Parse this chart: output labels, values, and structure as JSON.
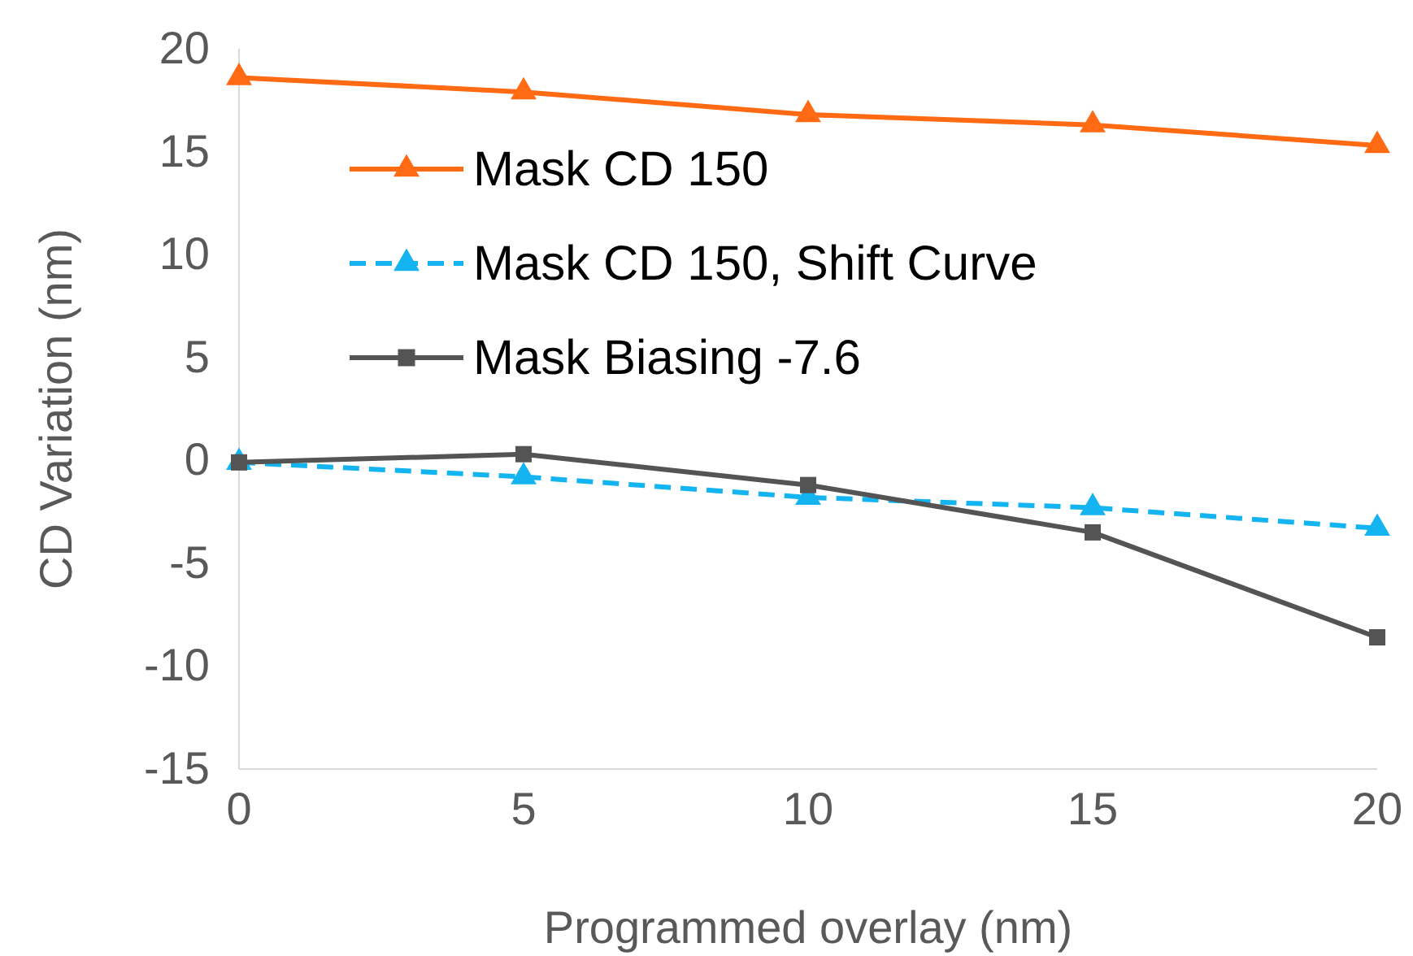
{
  "chart_data": {
    "type": "line",
    "xlabel": "Programmed overlay (nm)",
    "ylabel": "CD Variation (nm)",
    "x": [
      0,
      5,
      10,
      15,
      20
    ],
    "xlim": [
      0,
      20
    ],
    "xticks": [
      0,
      5,
      10,
      15,
      20
    ],
    "ylim": [
      -15,
      20
    ],
    "yticks": [
      -15,
      -10,
      -5,
      0,
      5,
      10,
      15,
      20
    ],
    "grid": false,
    "legend": "top left",
    "series": [
      {
        "name": "Mask CD 150",
        "color": "#ff6a13",
        "marker": "triangle",
        "line_style": "solid",
        "values": [
          18.6,
          17.9,
          16.8,
          16.3,
          15.3
        ]
      },
      {
        "name": "Mask CD 150, Shift Curve",
        "color": "#14b4f0",
        "marker": "triangle",
        "line_style": "dashed",
        "values": [
          -0.1,
          -0.8,
          -1.8,
          -2.3,
          -3.3
        ]
      },
      {
        "name": "Mask Biasing -7.6",
        "color": "#545454",
        "marker": "square",
        "line_style": "solid",
        "values": [
          -0.1,
          0.3,
          -1.2,
          -3.5,
          -8.6
        ]
      }
    ]
  }
}
